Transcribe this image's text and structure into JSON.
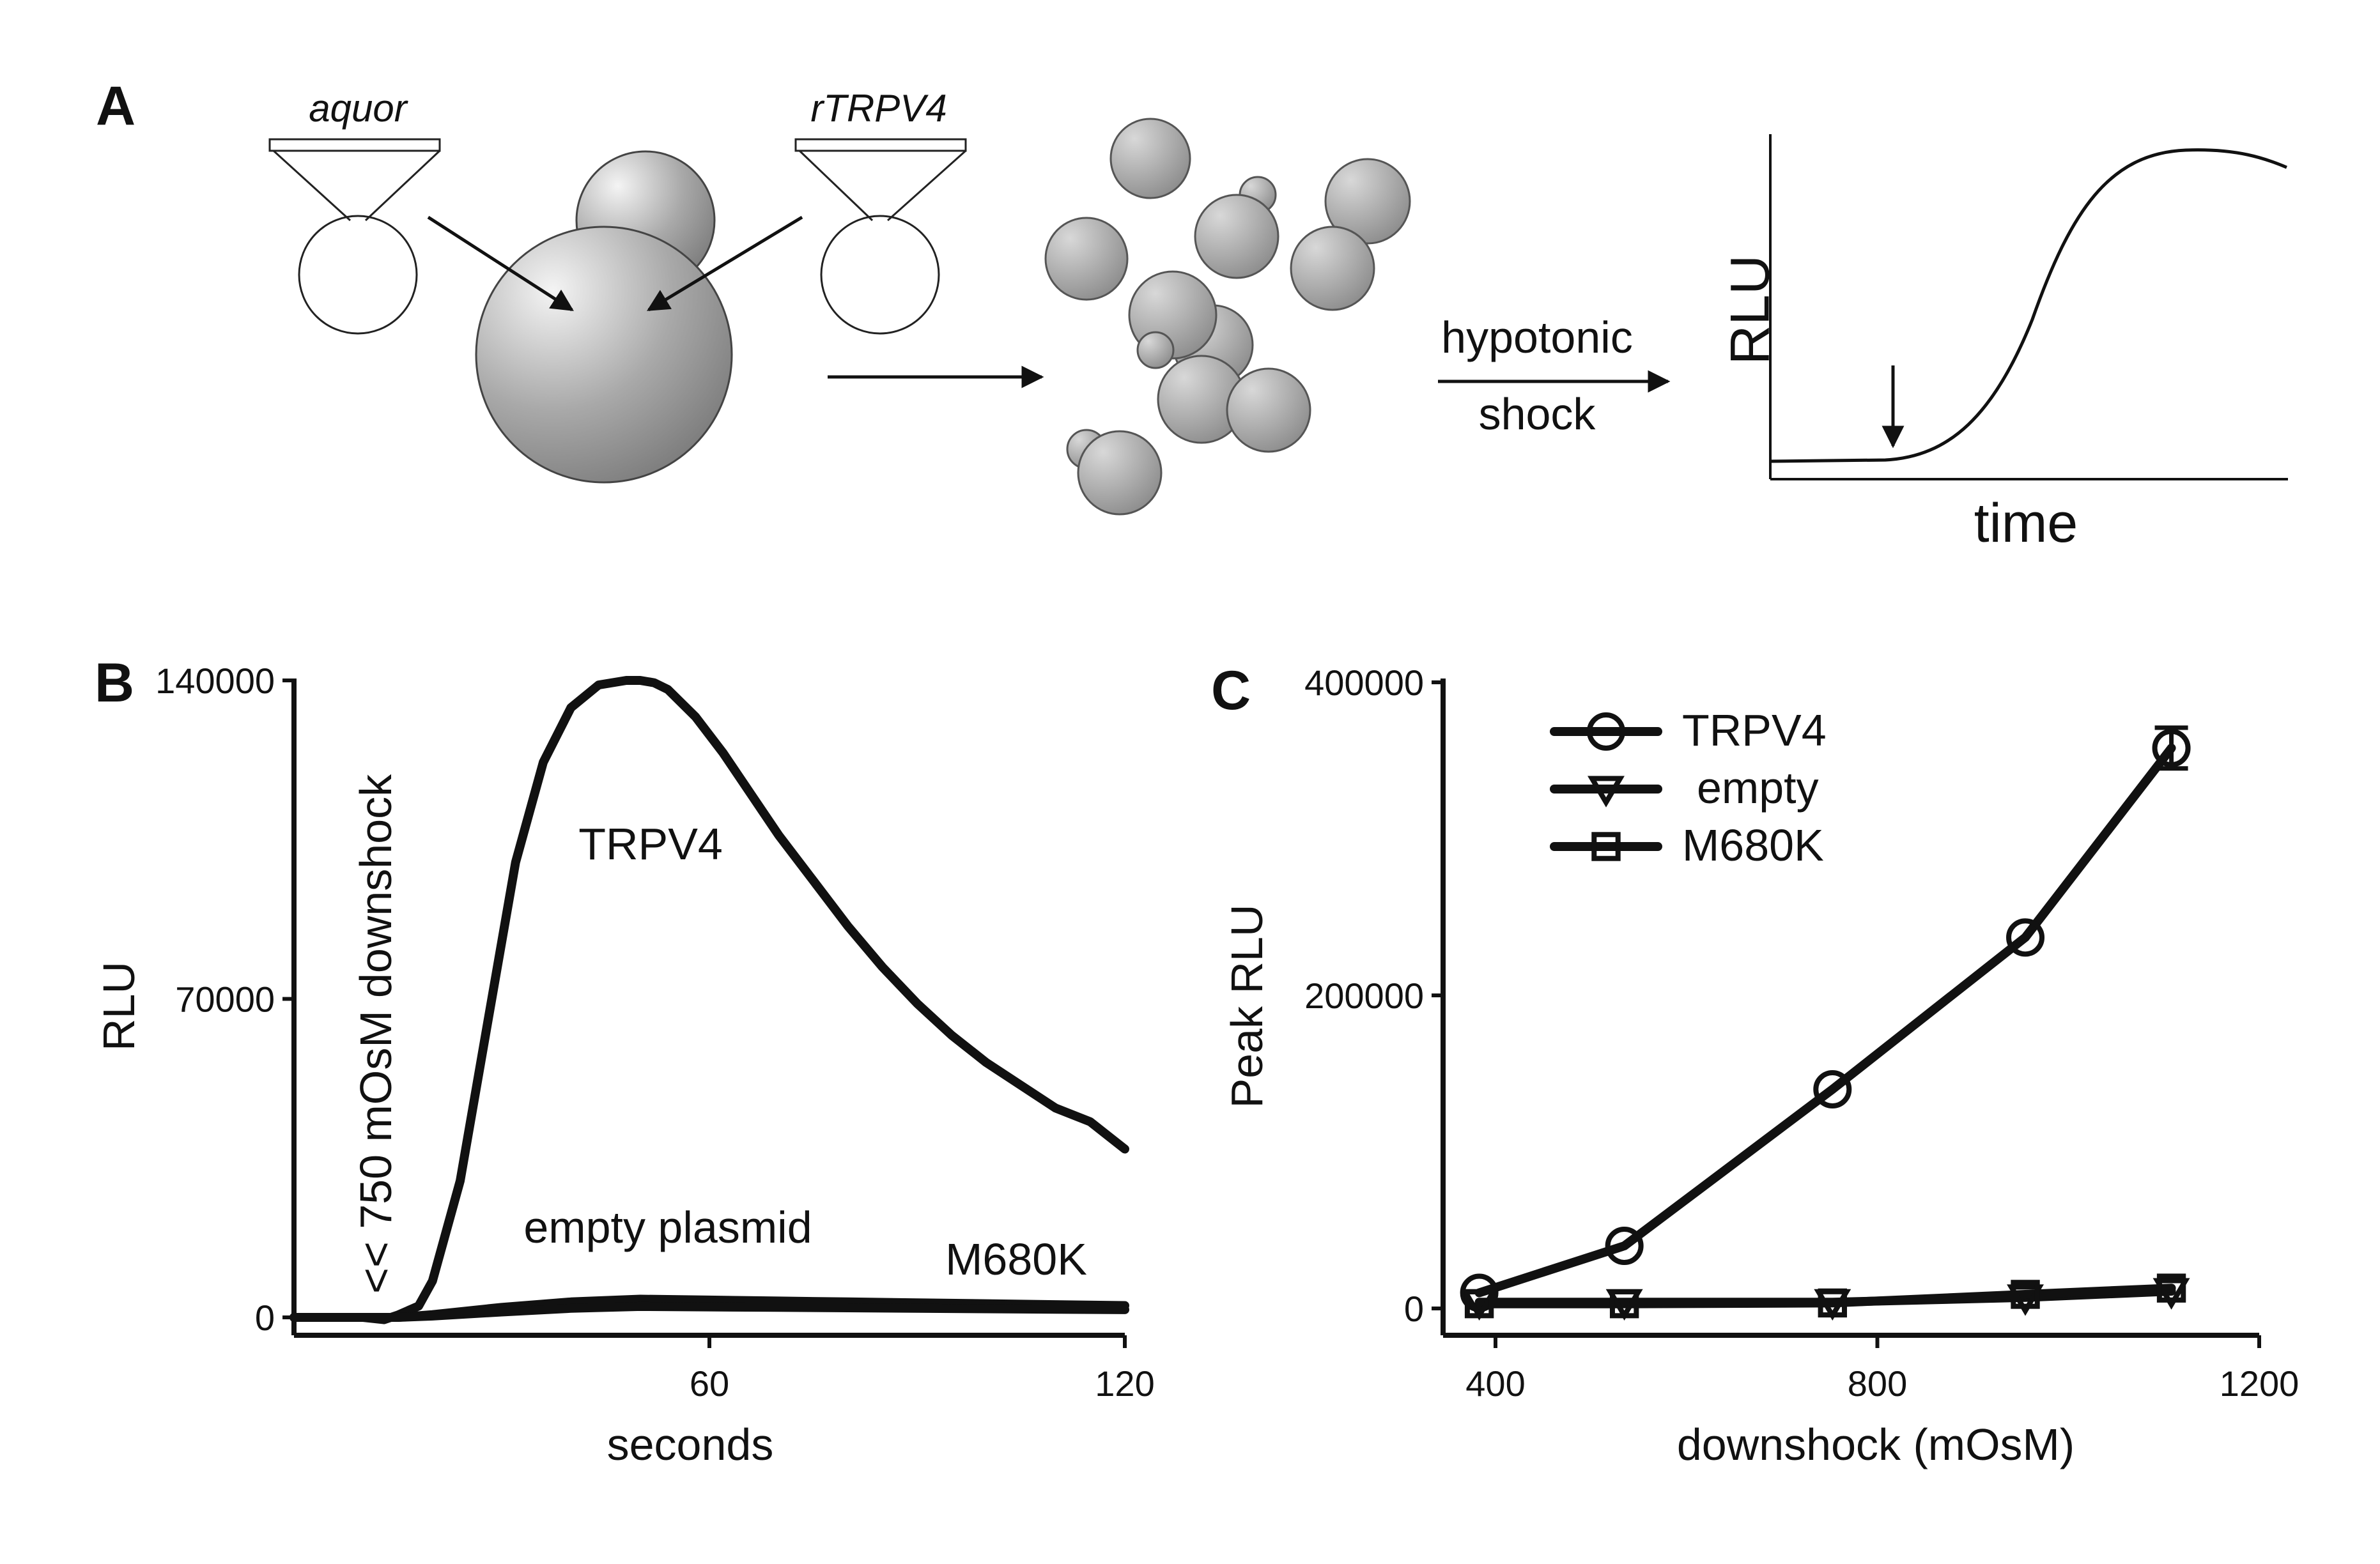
{
  "panel_a": {
    "letter": "A",
    "plasmid_left": "aquor",
    "plasmid_right": "rTRPV4",
    "arrow_label_1": "hypotonic",
    "arrow_label_2": "shock",
    "ylabel": "RLU",
    "xlabel": "time"
  },
  "chart_data": [
    {
      "panel": "B",
      "type": "line",
      "title": "",
      "xlabel": "seconds",
      "ylabel": "RLU",
      "xlim": [
        0,
        120
      ],
      "ylim": [
        0,
        140000
      ],
      "xticks": [
        60,
        120
      ],
      "yticks": [
        0,
        70000,
        140000
      ],
      "annotation": "<< 750 mOsM downshock",
      "series": [
        {
          "name": "TRPV4",
          "x": [
            0,
            5,
            10,
            13,
            15,
            18,
            20,
            24,
            28,
            32,
            36,
            40,
            44,
            48,
            50,
            52,
            54,
            58,
            62,
            66,
            70,
            75,
            80,
            85,
            90,
            95,
            100,
            105,
            110,
            115,
            120
          ],
          "y": [
            0,
            0,
            0,
            -500,
            500,
            2500,
            8000,
            30000,
            65000,
            100000,
            122000,
            134000,
            139000,
            140000,
            140000,
            139500,
            138000,
            132000,
            124000,
            115000,
            106000,
            96000,
            86000,
            77000,
            69000,
            62000,
            56000,
            51000,
            46000,
            43000,
            37000
          ]
        },
        {
          "name": "empty plasmid",
          "x": [
            0,
            10,
            15,
            20,
            30,
            40,
            50,
            60,
            70,
            80,
            90,
            100,
            110,
            120
          ],
          "y": [
            0,
            0,
            0,
            600,
            2200,
            3400,
            4000,
            3800,
            3600,
            3400,
            3200,
            3000,
            2800,
            2600
          ]
        },
        {
          "name": "M680K",
          "x": [
            0,
            10,
            15,
            20,
            30,
            40,
            50,
            60,
            70,
            80,
            90,
            100,
            110,
            120
          ],
          "y": [
            0,
            0,
            0,
            300,
            1200,
            2000,
            2400,
            2300,
            2200,
            2100,
            2000,
            1900,
            1800,
            1700
          ]
        }
      ]
    },
    {
      "panel": "C",
      "type": "line",
      "title": "",
      "xlabel": "downshock (mOsM)",
      "ylabel": "Peak RLU",
      "xlim": [
        400,
        1200
      ],
      "ylim": [
        0,
        400000
      ],
      "xticks": [
        400,
        800,
        1200
      ],
      "yticks": [
        0,
        200000,
        400000
      ],
      "legend": "top-left",
      "series": [
        {
          "name": "TRPV4",
          "marker": "circle",
          "x": [
            383,
            535,
            753,
            955,
            1108
          ],
          "y": [
            10000,
            40000,
            140000,
            237000,
            358000
          ],
          "err": [
            0,
            0,
            0,
            0,
            13000
          ]
        },
        {
          "name": "empty",
          "marker": "triangle-down",
          "x": [
            383,
            535,
            753,
            955,
            1108
          ],
          "y": [
            4000,
            4000,
            4000,
            7000,
            11000
          ]
        },
        {
          "name": "M680K",
          "marker": "square",
          "x": [
            383,
            535,
            753,
            955,
            1108
          ],
          "y": [
            3000,
            3000,
            3500,
            9000,
            13000
          ]
        }
      ]
    }
  ]
}
